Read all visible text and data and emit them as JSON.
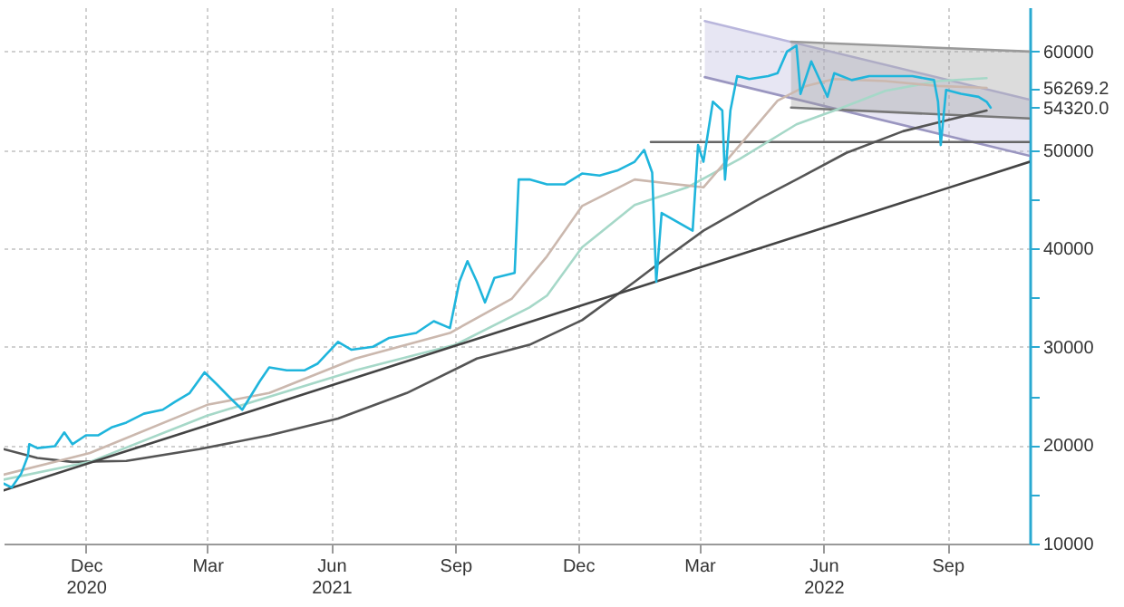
{
  "chart_data": {
    "type": "line",
    "xlim": [
      "2020-10-01",
      "2022-11-01"
    ],
    "xticks": [
      {
        "value": "2020-12-01",
        "label": "Dec\n2020"
      },
      {
        "value": "2021-03-01",
        "label": "Mar"
      },
      {
        "value": "2021-06-01",
        "label": "Jun\n2021"
      },
      {
        "value": "2021-09-01",
        "label": "Sep"
      },
      {
        "value": "2021-12-01",
        "label": "Dec"
      },
      {
        "value": "2022-03-01",
        "label": "Mar"
      },
      {
        "value": "2022-06-01",
        "label": "Jun\n2022"
      },
      {
        "value": "2022-09-01",
        "label": "Sep"
      }
    ],
    "ylim": [
      10000,
      64500
    ],
    "yticks": [
      10000,
      {
        "value": 15000,
        "label": null
      },
      20000,
      {
        "value": 25000,
        "label": null
      },
      30000,
      {
        "value": 35000,
        "label": null
      },
      40000,
      {
        "value": 45000,
        "label": null
      },
      50000,
      {
        "value": 54320,
        "label": "54320.0"
      },
      {
        "value": 56269.2,
        "label": "56269.2"
      },
      60000
    ],
    "grid": true,
    "marker": "none",
    "line_style": "solid",
    "series": [
      {
        "type": "line",
        "color": "#b9b6dc",
        "x": [
          "2022-03-05",
          "2022-11-01"
        ],
        "values": [
          63100,
          55100
        ],
        "lower": [
          57400,
          49400
        ],
        "upper": [
          63100,
          55100
        ]
      },
      {
        "type": "line",
        "color": "#9a96c0",
        "x": [
          "2022-03-05",
          "2022-11-01"
        ],
        "values": [
          57400,
          49400
        ]
      },
      {
        "type": "line",
        "color": "#9a9a9a",
        "x": [
          "2022-05-08",
          "2022-11-01"
        ],
        "values": [
          61000,
          60000
        ],
        "lower": [
          54300,
          53200
        ],
        "upper": [
          61000,
          60000
        ]
      },
      {
        "type": "line",
        "color": "#777777",
        "x": [
          "2022-05-08",
          "2022-11-01"
        ],
        "values": [
          54300,
          53200
        ]
      },
      {
        "type": "line",
        "color": "#666666",
        "x": [
          "2022-01-24",
          "2022-11-01"
        ],
        "values": [
          50800,
          50800
        ]
      },
      {
        "type": "line",
        "color": "#555555",
        "x": [
          "2020-10-01",
          "2020-10-26",
          "2020-11-21",
          "2020-12-31",
          "2021-02-23",
          "2021-04-16",
          "2021-06-06",
          "2021-07-27",
          "2021-09-17",
          "2021-10-26",
          "2021-12-04",
          "2022-01-12",
          "2022-02-06",
          "2022-03-04",
          "2022-04-14",
          "2022-05-12",
          "2022-06-18",
          "2022-07-30",
          "2022-08-31",
          "2022-09-30"
        ],
        "values": [
          19600,
          18700,
          18300,
          18400,
          19600,
          21000,
          22700,
          25300,
          28800,
          30200,
          32700,
          36600,
          39200,
          41800,
          45000,
          47000,
          49700,
          51900,
          53000,
          54000
        ]
      },
      {
        "type": "line",
        "color": "#a6d8c8",
        "x": [
          "2020-10-01",
          "2020-12-04",
          "2021-03-01",
          "2021-06-19",
          "2021-09-01",
          "2021-10-26",
          "2021-11-08",
          "2021-12-04",
          "2022-01-12",
          "2022-02-20",
          "2022-03-31",
          "2022-05-12",
          "2022-06-15",
          "2022-07-17",
          "2022-08-25",
          "2022-09-30"
        ],
        "values": [
          16500,
          18300,
          23000,
          27600,
          30200,
          34000,
          35200,
          40100,
          44400,
          46200,
          49100,
          52600,
          54300,
          56000,
          57000,
          57300
        ]
      },
      {
        "type": "line",
        "color": "#cbb8ae",
        "x": [
          "2020-10-01",
          "2020-12-04",
          "2021-03-01",
          "2021-04-16",
          "2021-06-19",
          "2021-08-28",
          "2021-10-13",
          "2021-11-08",
          "2021-12-04",
          "2022-01-12",
          "2022-02-06",
          "2022-03-04",
          "2022-03-31",
          "2022-04-28",
          "2022-05-19",
          "2022-06-09",
          "2022-07-17",
          "2022-08-25",
          "2022-09-30"
        ],
        "values": [
          17000,
          19200,
          24100,
          25300,
          28800,
          31400,
          34900,
          39200,
          44300,
          47000,
          46600,
          46200,
          50500,
          55000,
          56500,
          57200,
          57000,
          56500,
          56300
        ]
      },
      {
        "type": "line",
        "color": "#444444",
        "x": [
          "2020-10-01",
          "2022-11-01"
        ],
        "values": [
          15400,
          48800
        ]
      },
      {
        "type": "line",
        "color": "#1fb5dc",
        "x": [
          "2020-10-01",
          "2020-10-07",
          "2020-10-14",
          "2020-10-19",
          "2020-10-20",
          "2020-10-26",
          "2020-11-08",
          "2020-11-15",
          "2020-11-21",
          "2020-12-01",
          "2020-12-10",
          "2020-12-20",
          "2020-12-31",
          "2021-01-13",
          "2021-01-27",
          "2021-02-05",
          "2021-02-16",
          "2021-02-27",
          "2021-03-08",
          "2021-03-18",
          "2021-03-27",
          "2021-04-09",
          "2021-04-16",
          "2021-04-29",
          "2021-05-12",
          "2021-05-22",
          "2021-06-06",
          "2021-06-16",
          "2021-07-02",
          "2021-07-14",
          "2021-08-03",
          "2021-08-16",
          "2021-08-28",
          "2021-09-04",
          "2021-09-10",
          "2021-09-17",
          "2021-09-23",
          "2021-09-30",
          "2021-10-15",
          "2021-10-18",
          "2021-10-26",
          "2021-11-08",
          "2021-11-21",
          "2021-12-04",
          "2021-12-17",
          "2021-12-30",
          "2022-01-12",
          "2022-01-19",
          "2022-01-25",
          "2022-01-28",
          "2022-02-01",
          "2022-02-24",
          "2022-02-28",
          "2022-03-04",
          "2022-03-11",
          "2022-03-18",
          "2022-03-20",
          "2022-03-24",
          "2022-03-29",
          "2022-04-07",
          "2022-04-21",
          "2022-04-28",
          "2022-05-05",
          "2022-05-12",
          "2022-05-15",
          "2022-05-23",
          "2022-05-29",
          "2022-06-04",
          "2022-06-09",
          "2022-06-22",
          "2022-07-05",
          "2022-07-17",
          "2022-08-06",
          "2022-08-22",
          "2022-08-25",
          "2022-08-27",
          "2022-08-31",
          "2022-09-11",
          "2022-09-24",
          "2022-09-30",
          "2022-10-03"
        ],
        "values": [
          16100,
          15700,
          17100,
          18900,
          20100,
          19700,
          19900,
          21300,
          20100,
          21000,
          21000,
          21800,
          22300,
          23200,
          23600,
          24400,
          25300,
          27400,
          26200,
          24800,
          23600,
          26500,
          27900,
          27600,
          27600,
          28300,
          30500,
          29700,
          30000,
          30900,
          31400,
          32600,
          31900,
          36600,
          38700,
          36600,
          34500,
          37000,
          37500,
          47000,
          47000,
          46500,
          46500,
          47600,
          47400,
          47900,
          48800,
          50000,
          47700,
          36600,
          43600,
          41800,
          50500,
          48800,
          54900,
          54000,
          47000,
          54000,
          57500,
          57200,
          57500,
          57800,
          60000,
          60600,
          55700,
          59000,
          57200,
          55400,
          57800,
          57100,
          57500,
          57500,
          57500,
          57100,
          54900,
          50500,
          56100,
          55700,
          55400,
          54900,
          54300
        ]
      }
    ]
  }
}
